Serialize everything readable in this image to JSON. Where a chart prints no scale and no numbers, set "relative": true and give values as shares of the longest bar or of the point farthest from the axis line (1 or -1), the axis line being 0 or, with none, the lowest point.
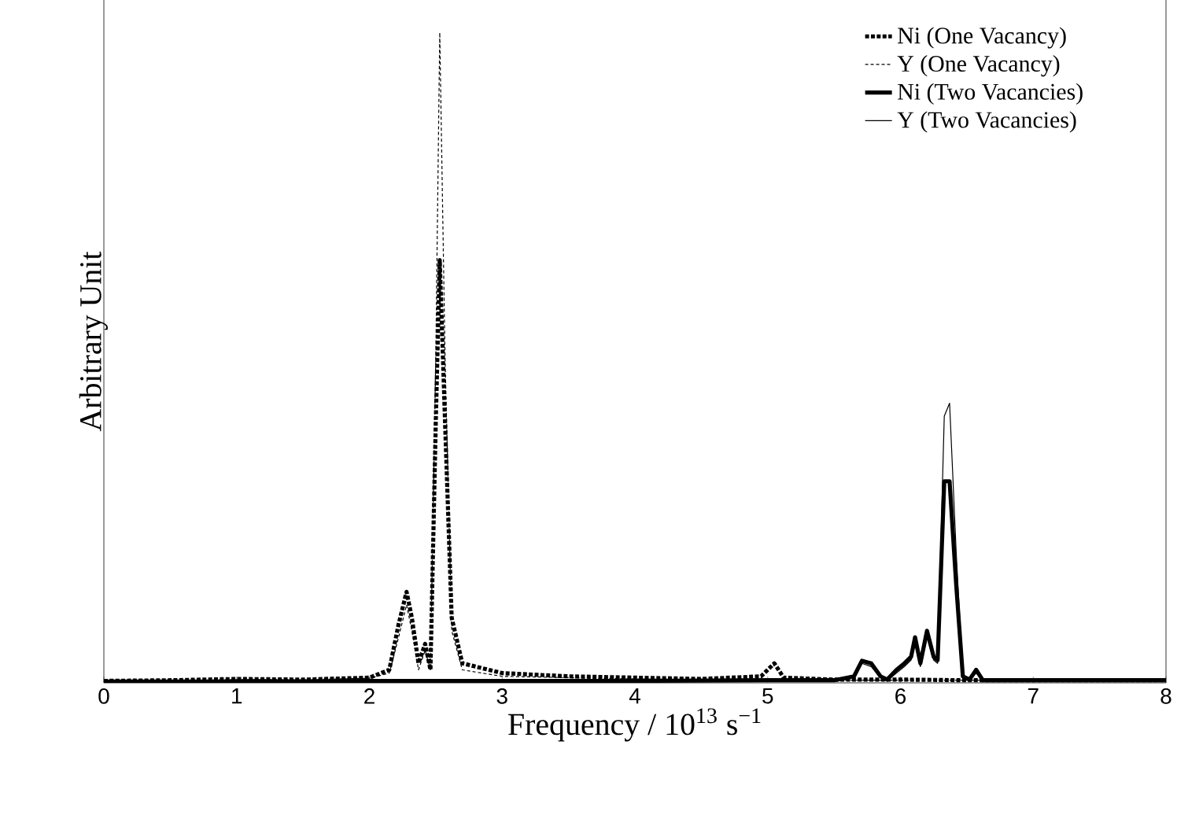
{
  "chart_data": {
    "type": "line",
    "relative": true,
    "xlabel": "Frequency /  10$^{13}$ s$^{−1}$",
    "ylabel": "Arbitrary Unit",
    "xlim": [
      0,
      8
    ],
    "xticks": [
      0,
      1,
      2,
      3,
      4,
      5,
      6,
      7,
      8
    ],
    "legend": "top right",
    "grid": false,
    "marker": "none",
    "series": [
      {
        "name": "Ni (One Vacancy)",
        "color": "#000000",
        "line_style": "dashed",
        "x": [
          0,
          0.5,
          1,
          1.5,
          2,
          2.15,
          2.22,
          2.28,
          2.32,
          2.37,
          2.42,
          2.46,
          2.5,
          2.53,
          2.57,
          2.62,
          2.7,
          3,
          3.5,
          4,
          4.5,
          4.95,
          5.05,
          5.12,
          5.5,
          6,
          6.5,
          7,
          7.5,
          8
        ],
        "values": [
          0.003,
          0.004,
          0.006,
          0.005,
          0.008,
          0.02,
          0.09,
          0.14,
          0.1,
          0.03,
          0.06,
          0.02,
          0.4,
          0.65,
          0.4,
          0.1,
          0.03,
          0.015,
          0.01,
          0.008,
          0.006,
          0.01,
          0.03,
          0.008,
          0.005,
          0.005,
          0.004,
          0.004,
          0.004,
          0.004
        ]
      },
      {
        "name": "Y  (One Vacancy)",
        "color": "#000000",
        "line_style": "dashed",
        "x": [
          0,
          0.5,
          1,
          1.5,
          2,
          2.15,
          2.22,
          2.28,
          2.32,
          2.37,
          2.42,
          2.46,
          2.5,
          2.53,
          2.57,
          2.62,
          2.7,
          3,
          3.5,
          4,
          4.5,
          5,
          5.5,
          6,
          6.5,
          7,
          7.5,
          8
        ],
        "values": [
          0.003,
          0.004,
          0.005,
          0.005,
          0.007,
          0.015,
          0.07,
          0.12,
          0.08,
          0.02,
          0.05,
          0.02,
          0.5,
          1,
          0.5,
          0.08,
          0.02,
          0.01,
          0.008,
          0.006,
          0.005,
          0.005,
          0.004,
          0.004,
          0.004,
          0.004,
          0.004,
          0.004
        ]
      },
      {
        "name": "Ni (Two Vacancies)",
        "color": "#000000",
        "line_style": "solid",
        "x": [
          0,
          1,
          2,
          3,
          4,
          5,
          5.5,
          5.65,
          5.71,
          5.78,
          5.85,
          5.9,
          5.97,
          6.03,
          6.08,
          6.11,
          6.15,
          6.2,
          6.25,
          6.28,
          6.33,
          6.37,
          6.42,
          6.47,
          6.52,
          6.57,
          6.62,
          7,
          7.5,
          8
        ],
        "values": [
          0.002,
          0.002,
          0.003,
          0.003,
          0.003,
          0.004,
          0.004,
          0.01,
          0.034,
          0.03,
          0.01,
          0.005,
          0.02,
          0.03,
          0.04,
          0.07,
          0.03,
          0.08,
          0.04,
          0.035,
          0.31,
          0.31,
          0.15,
          0.01,
          0.005,
          0.02,
          0.004,
          0.004,
          0.004,
          0.004
        ]
      },
      {
        "name": "Y  (Two Vacancies)",
        "color": "#000000",
        "line_style": "solid",
        "x": [
          0,
          1,
          2,
          3,
          4,
          5,
          5.5,
          5.65,
          5.71,
          5.78,
          5.85,
          5.9,
          5.97,
          6.03,
          6.08,
          6.11,
          6.15,
          6.2,
          6.25,
          6.28,
          6.33,
          6.37,
          6.42,
          6.47,
          6.52,
          6.57,
          6.62,
          7,
          7.5,
          8
        ],
        "values": [
          0.002,
          0.002,
          0.003,
          0.003,
          0.003,
          0.004,
          0.004,
          0.008,
          0.03,
          0.025,
          0.008,
          0.004,
          0.015,
          0.025,
          0.035,
          0.06,
          0.025,
          0.07,
          0.035,
          0.03,
          0.41,
          0.43,
          0.2,
          0.01,
          0.005,
          0.015,
          0.004,
          0.004,
          0.004,
          0.004
        ]
      }
    ]
  }
}
